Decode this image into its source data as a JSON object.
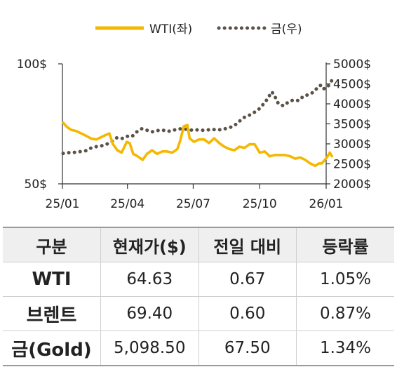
{
  "chart_data": {
    "type": "line",
    "title": "",
    "x_ticks": [
      "25/01",
      "25/04",
      "25/07",
      "25/10",
      "26/01"
    ],
    "y_left": {
      "ticks": [
        "100$",
        "50$"
      ],
      "range": [
        50,
        100
      ]
    },
    "y_right": {
      "ticks": [
        "5000$",
        "4500$",
        "4000$",
        "3500$",
        "3000$",
        "2500$",
        "2000$"
      ],
      "range": [
        2000,
        5000
      ]
    },
    "legend_position": "top",
    "series": [
      {
        "name": "WTI(좌)",
        "axis": "left",
        "color": "#f5b800",
        "style": "solid",
        "points": [
          [
            "2025-01-02",
            75.5
          ],
          [
            "2025-01-07",
            73.8
          ],
          [
            "2025-01-13",
            72.5
          ],
          [
            "2025-01-20",
            72.0
          ],
          [
            "2025-01-27",
            71.0
          ],
          [
            "2025-02-03",
            70.0
          ],
          [
            "2025-02-10",
            68.8
          ],
          [
            "2025-02-17",
            68.5
          ],
          [
            "2025-02-24",
            69.5
          ],
          [
            "2025-03-03",
            70.5
          ],
          [
            "2025-03-07",
            71.0
          ],
          [
            "2025-03-12",
            66.5
          ],
          [
            "2025-03-18",
            64.0
          ],
          [
            "2025-03-24",
            63.0
          ],
          [
            "2025-03-31",
            67.5
          ],
          [
            "2025-04-04",
            67.0
          ],
          [
            "2025-04-09",
            62.5
          ],
          [
            "2025-04-15",
            61.5
          ],
          [
            "2025-04-22",
            60.0
          ],
          [
            "2025-04-28",
            62.5
          ],
          [
            "2025-05-05",
            64.0
          ],
          [
            "2025-05-12",
            62.5
          ],
          [
            "2025-05-19",
            63.5
          ],
          [
            "2025-05-26",
            63.5
          ],
          [
            "2025-06-02",
            63.0
          ],
          [
            "2025-06-09",
            64.5
          ],
          [
            "2025-06-13",
            68.0
          ],
          [
            "2025-06-18",
            74.0
          ],
          [
            "2025-06-23",
            74.5
          ],
          [
            "2025-06-26",
            69.0
          ],
          [
            "2025-07-02",
            67.5
          ],
          [
            "2025-07-09",
            68.5
          ],
          [
            "2025-07-16",
            68.5
          ],
          [
            "2025-07-23",
            67.0
          ],
          [
            "2025-07-30",
            69.0
          ],
          [
            "2025-08-06",
            67.0
          ],
          [
            "2025-08-13",
            65.5
          ],
          [
            "2025-08-20",
            64.5
          ],
          [
            "2025-08-27",
            64.0
          ],
          [
            "2025-09-03",
            65.5
          ],
          [
            "2025-09-10",
            65.0
          ],
          [
            "2025-09-17",
            66.5
          ],
          [
            "2025-09-24",
            66.5
          ],
          [
            "2025-10-01",
            63.0
          ],
          [
            "2025-10-08",
            63.5
          ],
          [
            "2025-10-15",
            61.5
          ],
          [
            "2025-10-22",
            62.0
          ],
          [
            "2025-10-29",
            62.0
          ],
          [
            "2025-11-05",
            62.0
          ],
          [
            "2025-11-12",
            61.5
          ],
          [
            "2025-11-19",
            60.5
          ],
          [
            "2025-11-26",
            61.0
          ],
          [
            "2025-12-03",
            60.0
          ],
          [
            "2025-12-10",
            58.5
          ],
          [
            "2025-12-17",
            57.5
          ],
          [
            "2025-12-22",
            58.5
          ],
          [
            "2025-12-26",
            58.5
          ],
          [
            "2026-01-02",
            61.0
          ],
          [
            "2026-01-06",
            63.0
          ],
          [
            "2026-01-09",
            61.5
          ]
        ]
      },
      {
        "name": "금(우)",
        "axis": "right",
        "color": "#5a5246",
        "style": "dotted",
        "points": [
          [
            "2025-01-02",
            2760
          ],
          [
            "2025-01-10",
            2780
          ],
          [
            "2025-01-20",
            2790
          ],
          [
            "2025-01-27",
            2810
          ],
          [
            "2025-02-03",
            2830
          ],
          [
            "2025-02-10",
            2900
          ],
          [
            "2025-02-17",
            2930
          ],
          [
            "2025-02-24",
            2950
          ],
          [
            "2025-03-03",
            2990
          ],
          [
            "2025-03-10",
            3050
          ],
          [
            "2025-03-17",
            3150
          ],
          [
            "2025-03-24",
            3130
          ],
          [
            "2025-03-31",
            3190
          ],
          [
            "2025-04-07",
            3180
          ],
          [
            "2025-04-14",
            3300
          ],
          [
            "2025-04-21",
            3380
          ],
          [
            "2025-04-28",
            3340
          ],
          [
            "2025-05-05",
            3300
          ],
          [
            "2025-05-12",
            3330
          ],
          [
            "2025-05-19",
            3350
          ],
          [
            "2025-05-26",
            3310
          ],
          [
            "2025-06-02",
            3330
          ],
          [
            "2025-06-09",
            3370
          ],
          [
            "2025-06-16",
            3380
          ],
          [
            "2025-06-23",
            3360
          ],
          [
            "2025-06-30",
            3340
          ],
          [
            "2025-07-07",
            3350
          ],
          [
            "2025-07-14",
            3340
          ],
          [
            "2025-07-21",
            3350
          ],
          [
            "2025-07-28",
            3360
          ],
          [
            "2025-08-04",
            3350
          ],
          [
            "2025-08-11",
            3360
          ],
          [
            "2025-08-18",
            3400
          ],
          [
            "2025-08-25",
            3430
          ],
          [
            "2025-09-01",
            3530
          ],
          [
            "2025-09-08",
            3650
          ],
          [
            "2025-09-15",
            3700
          ],
          [
            "2025-09-22",
            3770
          ],
          [
            "2025-09-29",
            3850
          ],
          [
            "2025-10-06",
            3990
          ],
          [
            "2025-10-13",
            4150
          ],
          [
            "2025-10-17",
            4300
          ],
          [
            "2025-10-20",
            4260
          ],
          [
            "2025-10-27",
            4000
          ],
          [
            "2025-11-03",
            3950
          ],
          [
            "2025-11-10",
            4050
          ],
          [
            "2025-11-17",
            4100
          ],
          [
            "2025-11-24",
            4080
          ],
          [
            "2025-12-01",
            4200
          ],
          [
            "2025-12-08",
            4230
          ],
          [
            "2025-12-15",
            4300
          ],
          [
            "2025-12-22",
            4450
          ],
          [
            "2025-12-26",
            4470
          ],
          [
            "2025-12-29",
            4380
          ],
          [
            "2026-01-02",
            4400
          ],
          [
            "2026-01-06",
            4500
          ],
          [
            "2026-01-09",
            4590
          ],
          [
            "2026-01-12",
            4680
          ]
        ]
      }
    ]
  },
  "table": {
    "headers": [
      "구분",
      "현재가($)",
      "전일 대비",
      "등락률"
    ],
    "rows": [
      {
        "name": "WTI",
        "price": "64.63",
        "change": "0.67",
        "rate": "1.05%"
      },
      {
        "name": "브렌트",
        "price": "69.40",
        "change": "0.60",
        "rate": "0.87%"
      },
      {
        "name": "금(Gold)",
        "price": "5,098.50",
        "change": "67.50",
        "rate": "1.34%"
      }
    ]
  }
}
